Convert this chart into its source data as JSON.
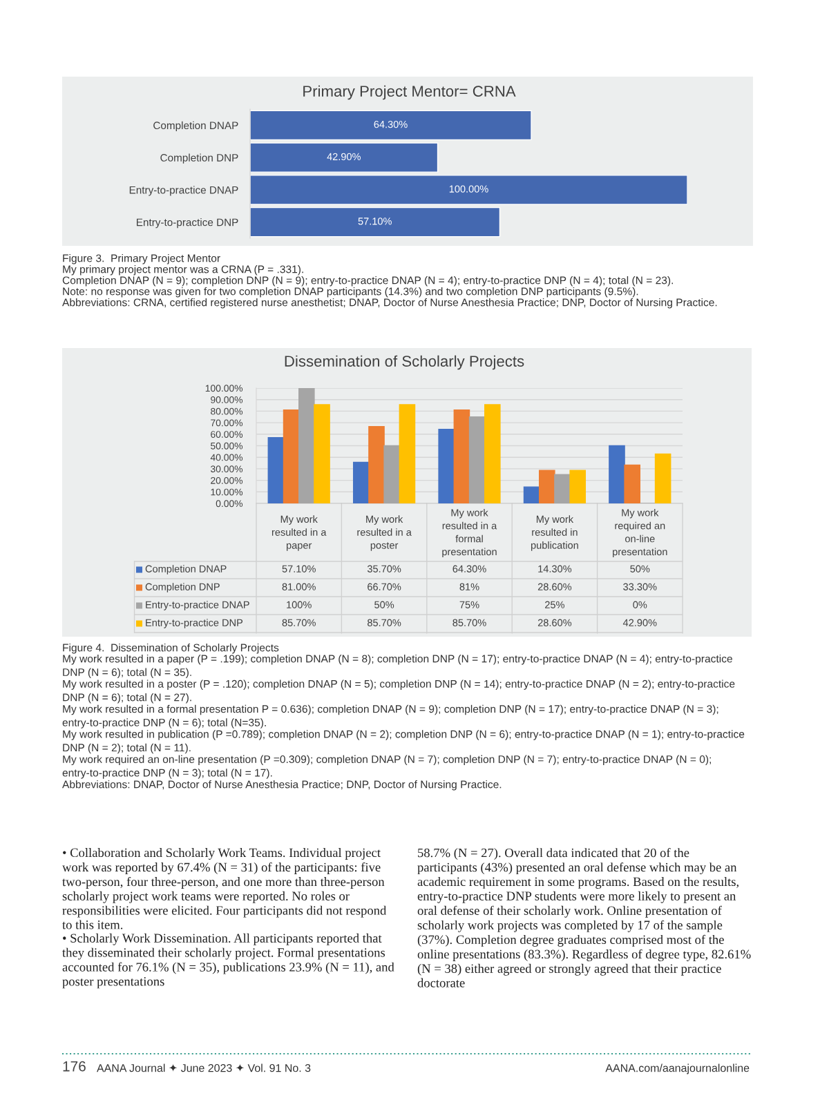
{
  "chart_data": [
    {
      "type": "bar",
      "orientation": "horizontal",
      "title": "Primary Project Mentor= CRNA",
      "categories": [
        "Completion DNAP",
        "Completion DNP",
        "Entry-to-practice DNAP",
        "Entry-to-practice DNP"
      ],
      "values": [
        64.3,
        42.9,
        100,
        57.1
      ],
      "value_labels": [
        "64.30%",
        "42.90%",
        "100.00%",
        "57.10%"
      ],
      "color": "#4468b0",
      "tick_labels": "y",
      "annotations": [
        "Figure 3.  Primary Project Mentor",
        "My primary project mentor was a CRNA (P = .331).",
        "Completion DNAP (N = 9); completion DNP (N = 9); entry-to-practice DNAP (N = 4); entry-to-practice DNP (N = 4); total (N = 23).",
        "Note: no response was given for two completion DNAP participants (14.3%) and two completion DNP participants (9.5%).",
        "Abbreviations: CRNA, certified registered nurse anesthetist; DNAP, Doctor of Nurse Anesthesia Practice; DNP, Doctor of Nursing Practice."
      ]
    },
    {
      "type": "bar",
      "title": "Dissemination of Scholarly Projects",
      "categories": [
        "My work resulted in a paper",
        "My work resulted in a poster",
        "My work resulted in a formal presentation",
        "My work resulted in publication",
        "My work required an on-line presentation"
      ],
      "series": [
        {
          "name": "Completion DNAP",
          "color": "#4472c4",
          "values": [
            57.1,
            35.7,
            64.3,
            14.3,
            50
          ],
          "value_labels": [
            "57.10%",
            "35.70%",
            "64.30%",
            "14.30%",
            "50%"
          ]
        },
        {
          "name": "Completion DNP",
          "color": "#ed7d31",
          "values": [
            81,
            66.7,
            81,
            28.6,
            33.3
          ],
          "value_labels": [
            "81.00%",
            "66.70%",
            "81%",
            "28.60%",
            "33.30%"
          ]
        },
        {
          "name": "Entry-to-practice DNAP",
          "color": "#a5a5a5",
          "values": [
            100,
            50,
            75,
            25,
            0
          ],
          "value_labels": [
            "100%",
            "50%",
            "75%",
            "25%",
            "0%"
          ]
        },
        {
          "name": "Entry-to-practice DNP",
          "color": "#ffc000",
          "values": [
            85.7,
            85.7,
            85.7,
            28.6,
            42.9
          ],
          "value_labels": [
            "85.70%",
            "85.70%",
            "85.70%",
            "28.60%",
            "42.90%"
          ]
        }
      ],
      "ylim": [
        0,
        100
      ],
      "yticks": [
        {
          "value": 0,
          "label": "0.00%"
        },
        {
          "value": 10,
          "label": "10.00%"
        },
        {
          "value": 20,
          "label": "20.00%"
        },
        {
          "value": 30,
          "label": "30.00%"
        },
        {
          "value": 40,
          "label": "40.00%"
        },
        {
          "value": 50,
          "label": "50.00%"
        },
        {
          "value": 60,
          "label": "60.00%"
        },
        {
          "value": 70,
          "label": "70.00%"
        },
        {
          "value": 80,
          "label": "80.00%"
        },
        {
          "value": 90,
          "label": "90.00%"
        },
        {
          "value": 100,
          "label": "100.00%"
        }
      ],
      "grid": "y",
      "legend": "bottom",
      "annotations": [
        "Figure 4.  Dissemination of Scholarly Projects",
        "My work resulted in a paper (P = .199); completion DNAP (N = 8); completion DNP (N = 17); entry-to-practice DNAP (N = 4); entry-to-practice DNP (N = 6); total (N = 35).",
        "My work resulted in a poster (P = .120); completion DNAP (N = 5); completion DNP (N = 14); entry-to-practice DNAP (N = 2); entry-to-practice DNP (N = 6); total (N = 27).",
        "My work resulted in a formal presentation P = 0.636); completion DNAP (N = 9); completion DNP (N = 17); entry-to-practice DNAP (N = 3); entry-to-practice DNP (N = 6); total (N=35).",
        "My work resulted in publication (P =0.789); completion DNAP (N = 2); completion DNP (N = 6); entry-to-practice DNAP (N = 1); entry-to-practice DNP (N = 2); total (N = 11).",
        "My work required an on-line presentation (P =0.309); completion DNAP (N = 7); completion DNP (N = 7); entry-to-practice DNAP (N = 0); entry-to-practice DNP (N = 3); total (N = 17).",
        "Abbreviations: DNAP, Doctor of Nurse Anesthesia Practice; DNP, Doctor of Nursing Practice."
      ]
    },
    {
      "type": "other",
      "annotations": [
        "• Collaboration and Scholarly Work Teams. Individual project work was reported by 67.4% (N = 31) of the participants: five two-person, four three-person, and one more than three-person scholarly project work teams were reported. No roles or responsibilities were elicited. Four participants did not respond to this item.",
        "• Scholarly Work Dissemination. All participants reported that they disseminated their scholarly project. Formal presentations accounted for 76.1% (N = 35), publications 23.9% (N = 11), and poster presentations",
        "58.7% (N = 27). Overall data indicated that 20 of the participants (43%) presented an oral defense which may be an academic requirement in some programs. Based on the results, entry-to-practice DNP students were more likely to present an oral defense of their scholarly work. Online presentation of scholarly work projects was completed by 17 of the sample (37%). Completion degree graduates comprised most of the online presentations (83.3%). Regardless of degree type, 82.61% (N = 38) either agreed or strongly agreed that their practice doctorate",
        "176",
        "AANA Journal ✦ June 2023 ✦ Vol. 91 No. 3",
        "AANA.com/aanajournalonline"
      ]
    }
  ]
}
